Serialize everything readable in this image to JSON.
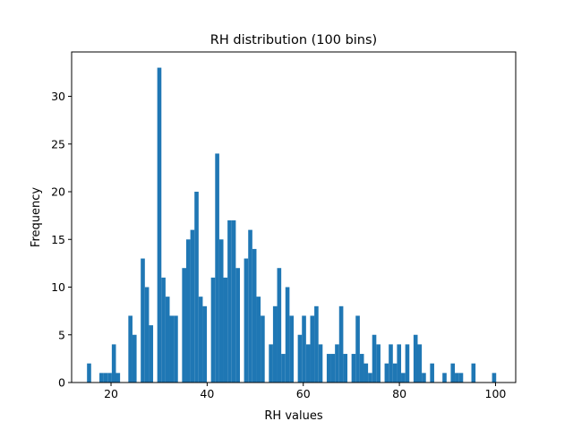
{
  "chart_data": {
    "type": "bar",
    "title": "RH distribution (100 bins)",
    "xlabel": "RH values",
    "ylabel": "Frequency",
    "xlim": [
      11.8,
      104.2
    ],
    "ylim": [
      0,
      34.65
    ],
    "x_ticks": [
      20,
      40,
      60,
      80,
      100
    ],
    "y_ticks": [
      0,
      5,
      10,
      15,
      20,
      25,
      30
    ],
    "bin_range": [
      15,
      101
    ],
    "bin_count": 100,
    "values": [
      2,
      0,
      0,
      1,
      1,
      1,
      4,
      1,
      0,
      0,
      7,
      5,
      0,
      13,
      10,
      6,
      0,
      33,
      11,
      9,
      7,
      7,
      0,
      12,
      15,
      16,
      20,
      9,
      8,
      0,
      11,
      24,
      15,
      11,
      17,
      17,
      12,
      0,
      13,
      16,
      14,
      9,
      7,
      0,
      4,
      8,
      12,
      3,
      10,
      7,
      0,
      5,
      7,
      4,
      7,
      8,
      4,
      0,
      3,
      3,
      4,
      8,
      3,
      0,
      3,
      7,
      3,
      2,
      1,
      5,
      4,
      0,
      2,
      4,
      2,
      4,
      1,
      4,
      0,
      5,
      4,
      1,
      0,
      2,
      0,
      0,
      1,
      0,
      2,
      1,
      1,
      0,
      0,
      2,
      0,
      0,
      0,
      0,
      1,
      0
    ],
    "bar_color": "#1f77b4",
    "grid": false,
    "legend": "none"
  }
}
